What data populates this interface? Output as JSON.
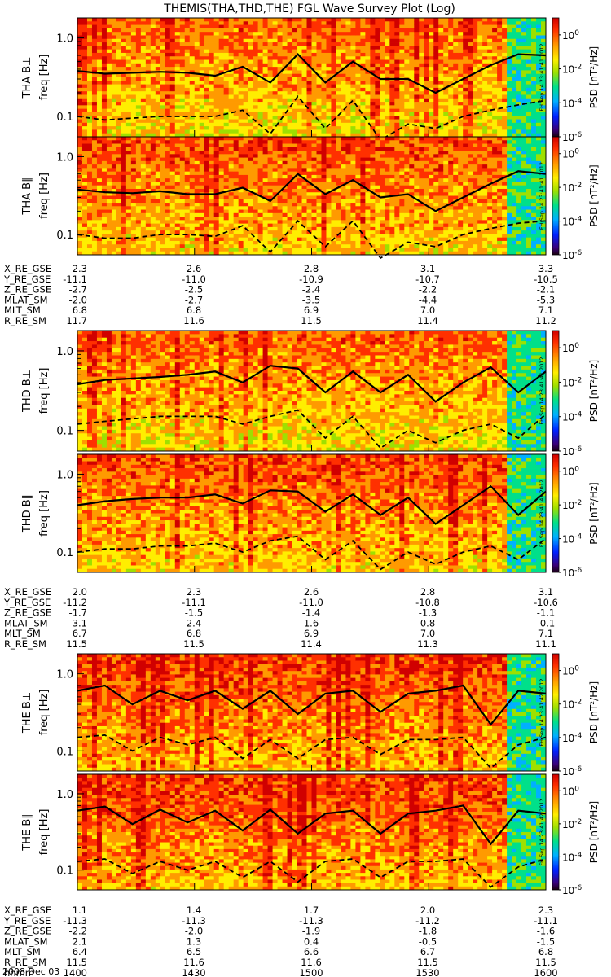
{
  "title": "THEMIS(THA,THD,THE) FGL Wave Survey Plot (Log)",
  "date_label": "2008 Dec 03",
  "colorbar": {
    "label": "PSD [nT²/Hz]",
    "ticks": [
      {
        "base": "10",
        "exp": "0"
      },
      {
        "base": "10",
        "exp": "-2"
      },
      {
        "base": "10",
        "exp": "-4"
      },
      {
        "base": "10",
        "exp": "-6"
      }
    ]
  },
  "freq_ticks": [
    "1.0",
    "0.1"
  ],
  "panels": [
    {
      "probe_label": "THA B⊥",
      "freq_label": "freq [Hz]",
      "stamp": "FH Sep 14 23:41:41 2012"
    },
    {
      "probe_label": "THA B∥",
      "freq_label": "freq [Hz]",
      "stamp": "FH Sep 14 23:41:41 2012"
    },
    {
      "probe_label": "THD B⊥",
      "freq_label": "freq [Hz]",
      "stamp": "FH Sep 14 23:41:41 2012"
    },
    {
      "probe_label": "THD B∥",
      "freq_label": "freq [Hz]",
      "stamp": "FH Sep 14 23:41:41 2012"
    },
    {
      "probe_label": "THE B⊥",
      "freq_label": "freq [Hz]",
      "stamp": "FH Sep 14 23:41:42 2012"
    },
    {
      "probe_label": "THE B∥",
      "freq_label": "freq [Hz]",
      "stamp": "FH Sep 14 23:41:42 2012"
    }
  ],
  "ephemeris": [
    {
      "rows": [
        {
          "name": "X_RE_GSE",
          "values": [
            "2.3",
            "2.6",
            "2.8",
            "3.1",
            "3.3"
          ]
        },
        {
          "name": "Y_RE_GSE",
          "values": [
            "-11.1",
            "-11.0",
            "-10.9",
            "-10.7",
            "-10.5"
          ]
        },
        {
          "name": "Z_RE_GSE",
          "values": [
            "-2.7",
            "-2.5",
            "-2.4",
            "-2.2",
            "-2.1"
          ]
        },
        {
          "name": "MLAT_SM",
          "values": [
            "-2.0",
            "-2.7",
            "-3.5",
            "-4.4",
            "-5.3"
          ]
        },
        {
          "name": "MLT_SM",
          "values": [
            "6.8",
            "6.8",
            "6.9",
            "7.0",
            "7.1"
          ]
        },
        {
          "name": "R_RE_SM",
          "values": [
            "11.7",
            "11.6",
            "11.5",
            "11.4",
            "11.2"
          ]
        }
      ]
    },
    {
      "rows": [
        {
          "name": "X_RE_GSE",
          "values": [
            "2.0",
            "2.3",
            "2.6",
            "2.8",
            "3.1"
          ]
        },
        {
          "name": "Y_RE_GSE",
          "values": [
            "-11.2",
            "-11.1",
            "-11.0",
            "-10.8",
            "-10.6"
          ]
        },
        {
          "name": "Z_RE_GSE",
          "values": [
            "-1.7",
            "-1.5",
            "-1.4",
            "-1.3",
            "-1.1"
          ]
        },
        {
          "name": "MLAT_SM",
          "values": [
            "3.1",
            "2.4",
            "1.6",
            "0.8",
            "-0.1"
          ]
        },
        {
          "name": "MLT_SM",
          "values": [
            "6.7",
            "6.8",
            "6.9",
            "7.0",
            "7.1"
          ]
        },
        {
          "name": "R_RE_SM",
          "values": [
            "11.5",
            "11.5",
            "11.4",
            "11.3",
            "11.1"
          ]
        }
      ]
    },
    {
      "rows": [
        {
          "name": "X_RE_GSE",
          "values": [
            "1.1",
            "1.4",
            "1.7",
            "2.0",
            "2.3"
          ]
        },
        {
          "name": "Y_RE_GSE",
          "values": [
            "-11.3",
            "-11.3",
            "-11.3",
            "-11.2",
            "-11.1"
          ]
        },
        {
          "name": "Z_RE_GSE",
          "values": [
            "-2.2",
            "-2.0",
            "-1.9",
            "-1.8",
            "-1.6"
          ]
        },
        {
          "name": "MLAT_SM",
          "values": [
            "2.1",
            "1.3",
            "0.4",
            "-0.5",
            "-1.5"
          ]
        },
        {
          "name": "MLT_SM",
          "values": [
            "6.4",
            "6.5",
            "6.6",
            "6.7",
            "6.8"
          ]
        },
        {
          "name": "R_RE_SM",
          "values": [
            "11.5",
            "11.6",
            "11.6",
            "11.5",
            "11.5"
          ]
        },
        {
          "name": "hhmm",
          "values": [
            "1400",
            "1430",
            "1500",
            "1530",
            "1600"
          ]
        }
      ]
    }
  ],
  "chart_data": {
    "type": "heatmap",
    "title": "THEMIS(THA,THD,THE) FGL Wave Survey Plot (Log)",
    "x_ticks": [
      "1400",
      "1430",
      "1500",
      "1530",
      "1600"
    ],
    "ylabel": "freq [Hz]",
    "yscale": "log",
    "ylim": [
      0.055,
      1.8
    ],
    "z_label": "PSD [nT²/Hz]",
    "z_scale": "log",
    "zlim": [
      1e-06,
      10
    ],
    "colormap": [
      "#1a0010",
      "#3a007a",
      "#0020ff",
      "#00b0ff",
      "#00e08a",
      "#9ee000",
      "#ffee00",
      "#ff9a00",
      "#ff3000",
      "#d00000"
    ],
    "series": [
      {
        "name": "THA B⊥",
        "solid_line_hz": [
          0.38,
          0.35,
          0.36,
          0.37,
          0.36,
          0.33,
          0.43,
          0.27,
          0.62,
          0.27,
          0.5,
          0.3,
          0.3,
          0.2,
          0.3,
          0.45,
          0.62,
          0.6
        ],
        "dashed_line_hz": [
          0.1,
          0.09,
          0.095,
          0.1,
          0.1,
          0.1,
          0.12,
          0.06,
          0.18,
          0.07,
          0.16,
          0.05,
          0.08,
          0.07,
          0.1,
          0.12,
          0.14,
          0.16
        ]
      },
      {
        "name": "THA B∥",
        "solid_line_hz": [
          0.38,
          0.35,
          0.34,
          0.36,
          0.33,
          0.33,
          0.4,
          0.27,
          0.6,
          0.33,
          0.5,
          0.3,
          0.33,
          0.2,
          0.3,
          0.45,
          0.65,
          0.6
        ],
        "dashed_line_hz": [
          0.1,
          0.09,
          0.09,
          0.1,
          0.1,
          0.095,
          0.13,
          0.06,
          0.15,
          0.07,
          0.15,
          0.05,
          0.08,
          0.07,
          0.1,
          0.12,
          0.14,
          0.15
        ]
      },
      {
        "name": "THD B⊥",
        "solid_line_hz": [
          0.38,
          0.43,
          0.45,
          0.47,
          0.5,
          0.55,
          0.4,
          0.65,
          0.6,
          0.3,
          0.55,
          0.3,
          0.5,
          0.23,
          0.4,
          0.62,
          0.3,
          0.55
        ],
        "dashed_line_hz": [
          0.12,
          0.13,
          0.14,
          0.15,
          0.15,
          0.15,
          0.12,
          0.15,
          0.18,
          0.08,
          0.15,
          0.06,
          0.1,
          0.07,
          0.1,
          0.12,
          0.08,
          0.16
        ]
      },
      {
        "name": "THD B∥",
        "solid_line_hz": [
          0.4,
          0.45,
          0.48,
          0.5,
          0.5,
          0.55,
          0.42,
          0.62,
          0.6,
          0.33,
          0.55,
          0.3,
          0.5,
          0.23,
          0.4,
          0.7,
          0.3,
          0.6
        ],
        "dashed_line_hz": [
          0.1,
          0.11,
          0.11,
          0.12,
          0.12,
          0.13,
          0.1,
          0.14,
          0.16,
          0.08,
          0.14,
          0.06,
          0.1,
          0.07,
          0.1,
          0.12,
          0.08,
          0.15
        ]
      },
      {
        "name": "THE B⊥",
        "solid_line_hz": [
          0.6,
          0.7,
          0.4,
          0.6,
          0.45,
          0.6,
          0.35,
          0.6,
          0.3,
          0.55,
          0.6,
          0.32,
          0.55,
          0.6,
          0.7,
          0.22,
          0.6,
          0.55
        ],
        "dashed_line_hz": [
          0.15,
          0.16,
          0.1,
          0.15,
          0.12,
          0.15,
          0.08,
          0.14,
          0.08,
          0.14,
          0.15,
          0.09,
          0.14,
          0.14,
          0.15,
          0.06,
          0.12,
          0.15
        ]
      },
      {
        "name": "THE B∥",
        "solid_line_hz": [
          0.6,
          0.68,
          0.4,
          0.62,
          0.42,
          0.6,
          0.33,
          0.62,
          0.3,
          0.55,
          0.6,
          0.3,
          0.55,
          0.6,
          0.7,
          0.22,
          0.6,
          0.55
        ],
        "dashed_line_hz": [
          0.13,
          0.14,
          0.09,
          0.13,
          0.1,
          0.13,
          0.08,
          0.13,
          0.07,
          0.13,
          0.14,
          0.08,
          0.13,
          0.13,
          0.14,
          0.06,
          0.11,
          0.14
        ]
      }
    ]
  }
}
